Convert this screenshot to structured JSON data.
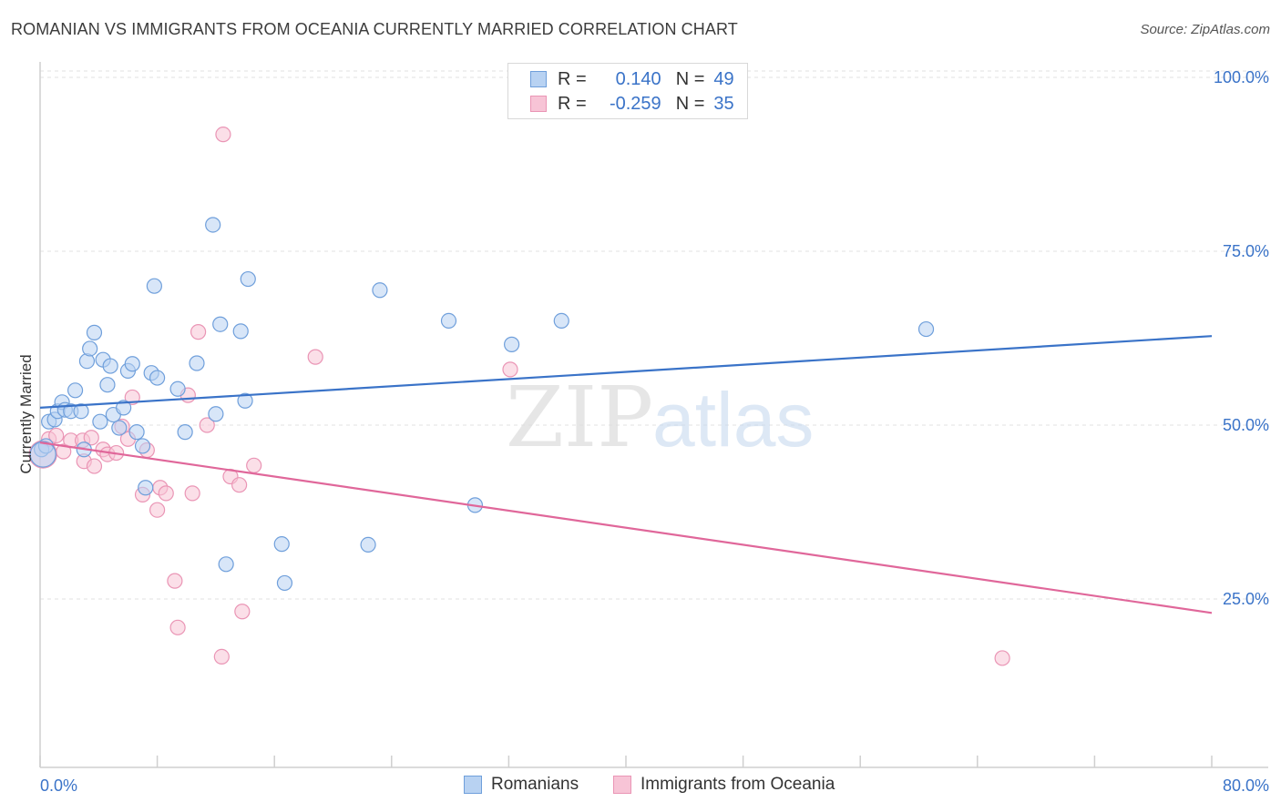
{
  "title": "ROMANIAN VS IMMIGRANTS FROM OCEANIA CURRENTLY MARRIED CORRELATION CHART",
  "source": "Source: ZipAtlas.com",
  "colors": {
    "blue": "#3a73c8",
    "blue_fill": "#b8d2f2",
    "blue_stroke": "#6f9fdb",
    "pink": "#e0679a",
    "pink_fill": "#f7c4d6",
    "pink_stroke": "#ea95b5"
  },
  "legend": {
    "r_label": "R =",
    "n_label": "N =",
    "series1": {
      "r": "0.140",
      "n": "49"
    },
    "series2": {
      "r": "-0.259",
      "n": "35"
    }
  },
  "bottom_legend": {
    "series1": "Romanians",
    "series2": "Immigrants from Oceania"
  },
  "chart_data": {
    "type": "scatter",
    "title": "ROMANIAN VS IMMIGRANTS FROM OCEANIA CURRENTLY MARRIED CORRELATION CHART",
    "xlabel": "",
    "ylabel": "Currently Married",
    "xlim": [
      0,
      80
    ],
    "ylim": [
      0,
      105
    ],
    "x_tick_labels": [
      "0.0%",
      "80.0%"
    ],
    "y_ticks": [
      25,
      50,
      75,
      100
    ],
    "y_tick_labels": [
      "25.0%",
      "50.0%",
      "75.0%",
      "100.0%"
    ],
    "watermark": "ZIPatlas",
    "series": [
      {
        "name": "Romanians",
        "color": "#3a73c8",
        "trend": [
          [
            0,
            52.5
          ],
          [
            80,
            62.8
          ]
        ],
        "points": [
          [
            0.1,
            46.5
          ],
          [
            0.4,
            47.0
          ],
          [
            0.6,
            50.5
          ],
          [
            1.0,
            50.8
          ],
          [
            1.2,
            52.0
          ],
          [
            1.5,
            53.3
          ],
          [
            1.7,
            52.2
          ],
          [
            2.1,
            52.0
          ],
          [
            2.4,
            55.0
          ],
          [
            2.8,
            52.0
          ],
          [
            3.0,
            46.5
          ],
          [
            3.2,
            59.2
          ],
          [
            3.4,
            61.0
          ],
          [
            3.7,
            63.3
          ],
          [
            4.1,
            50.5
          ],
          [
            4.3,
            59.4
          ],
          [
            4.6,
            55.8
          ],
          [
            4.8,
            58.5
          ],
          [
            5.0,
            51.5
          ],
          [
            5.4,
            49.6
          ],
          [
            5.7,
            52.5
          ],
          [
            6.0,
            57.8
          ],
          [
            6.3,
            58.8
          ],
          [
            6.6,
            49.0
          ],
          [
            7.0,
            47.0
          ],
          [
            7.2,
            41.0
          ],
          [
            7.6,
            57.5
          ],
          [
            7.8,
            70.0
          ],
          [
            8.0,
            56.8
          ],
          [
            9.4,
            55.2
          ],
          [
            9.9,
            49.0
          ],
          [
            10.7,
            58.9
          ],
          [
            11.8,
            78.8
          ],
          [
            12.0,
            51.6
          ],
          [
            12.3,
            64.5
          ],
          [
            12.7,
            30.0
          ],
          [
            13.7,
            63.5
          ],
          [
            14.0,
            53.5
          ],
          [
            14.2,
            71.0
          ],
          [
            16.5,
            32.9
          ],
          [
            16.7,
            27.3
          ],
          [
            22.4,
            32.8
          ],
          [
            23.2,
            69.4
          ],
          [
            27.9,
            65.0
          ],
          [
            29.7,
            38.5
          ],
          [
            32.2,
            61.6
          ],
          [
            35.6,
            65.0
          ],
          [
            60.5,
            63.8
          ],
          [
            0.2,
            45.8
          ]
        ]
      },
      {
        "name": "Immigrants from Oceania",
        "color": "#e0679a",
        "trend": [
          [
            0,
            47.5
          ],
          [
            80,
            23.0
          ]
        ],
        "points": [
          [
            0.2,
            45.8
          ],
          [
            0.6,
            48.0
          ],
          [
            1.1,
            48.5
          ],
          [
            1.6,
            46.2
          ],
          [
            2.1,
            47.8
          ],
          [
            2.9,
            47.8
          ],
          [
            3.0,
            44.8
          ],
          [
            3.5,
            48.2
          ],
          [
            3.7,
            44.1
          ],
          [
            4.3,
            46.5
          ],
          [
            4.6,
            45.8
          ],
          [
            5.2,
            46.0
          ],
          [
            5.6,
            49.8
          ],
          [
            6.0,
            48.0
          ],
          [
            6.3,
            54.0
          ],
          [
            7.0,
            40.0
          ],
          [
            7.3,
            46.4
          ],
          [
            8.0,
            37.8
          ],
          [
            8.2,
            41.0
          ],
          [
            8.6,
            40.2
          ],
          [
            9.2,
            27.6
          ],
          [
            9.4,
            20.9
          ],
          [
            10.1,
            54.3
          ],
          [
            10.4,
            40.2
          ],
          [
            10.8,
            63.4
          ],
          [
            11.4,
            50.0
          ],
          [
            12.5,
            91.8
          ],
          [
            12.4,
            16.7
          ],
          [
            13.0,
            42.6
          ],
          [
            13.6,
            41.4
          ],
          [
            13.8,
            23.2
          ],
          [
            14.6,
            44.2
          ],
          [
            18.8,
            59.8
          ],
          [
            32.1,
            58.0
          ],
          [
            65.7,
            16.5
          ]
        ]
      }
    ]
  }
}
